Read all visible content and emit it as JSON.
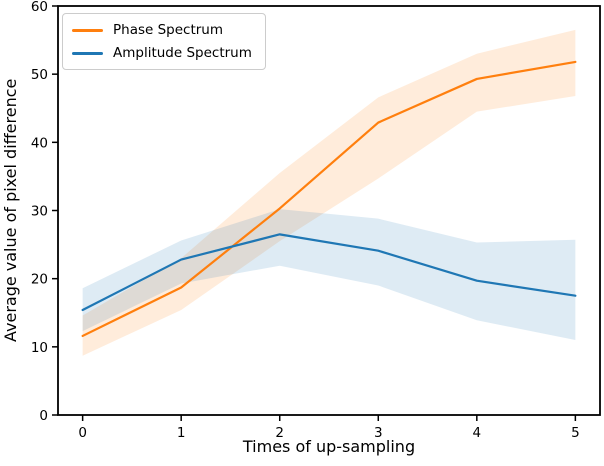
{
  "figure": {
    "background": "#ffffff",
    "spine_color": "#000000"
  },
  "chart_data": {
    "type": "line",
    "title": "",
    "xlabel": "Times of up-sampling",
    "ylabel": "Average value of pixel difference",
    "x": [
      0,
      1,
      2,
      3,
      4,
      5
    ],
    "xlim": [
      -0.25,
      5.25
    ],
    "ylim": [
      0,
      60
    ],
    "x_ticks": [
      "0",
      "1",
      "2",
      "3",
      "4",
      "5"
    ],
    "x_tick_values": [
      0,
      1,
      2,
      3,
      4,
      5
    ],
    "y_ticks": [
      "0",
      "10",
      "20",
      "30",
      "40",
      "50",
      "60"
    ],
    "y_tick_values": [
      0,
      10,
      20,
      30,
      40,
      50,
      60
    ],
    "grid": false,
    "legend_position": "upper-left",
    "series": [
      {
        "name": "Phase Spectrum",
        "color": "#ff7f0e",
        "values": [
          11.6,
          18.7,
          30.3,
          42.9,
          49.3,
          51.8
        ],
        "band_low": [
          8.7,
          15.4,
          25.5,
          34.7,
          44.5,
          46.8
        ],
        "band_high": [
          14.6,
          23.0,
          35.5,
          46.6,
          53.0,
          56.5
        ],
        "band_alpha": 0.15
      },
      {
        "name": "Amplitude Spectrum",
        "color": "#1f77b4",
        "values": [
          15.4,
          22.8,
          26.5,
          24.1,
          19.7,
          17.5
        ],
        "band_low": [
          12.3,
          19.3,
          21.9,
          19.0,
          13.9,
          11.0
        ],
        "band_high": [
          18.6,
          25.6,
          30.2,
          28.8,
          25.3,
          25.7
        ],
        "band_alpha": 0.15
      }
    ]
  }
}
